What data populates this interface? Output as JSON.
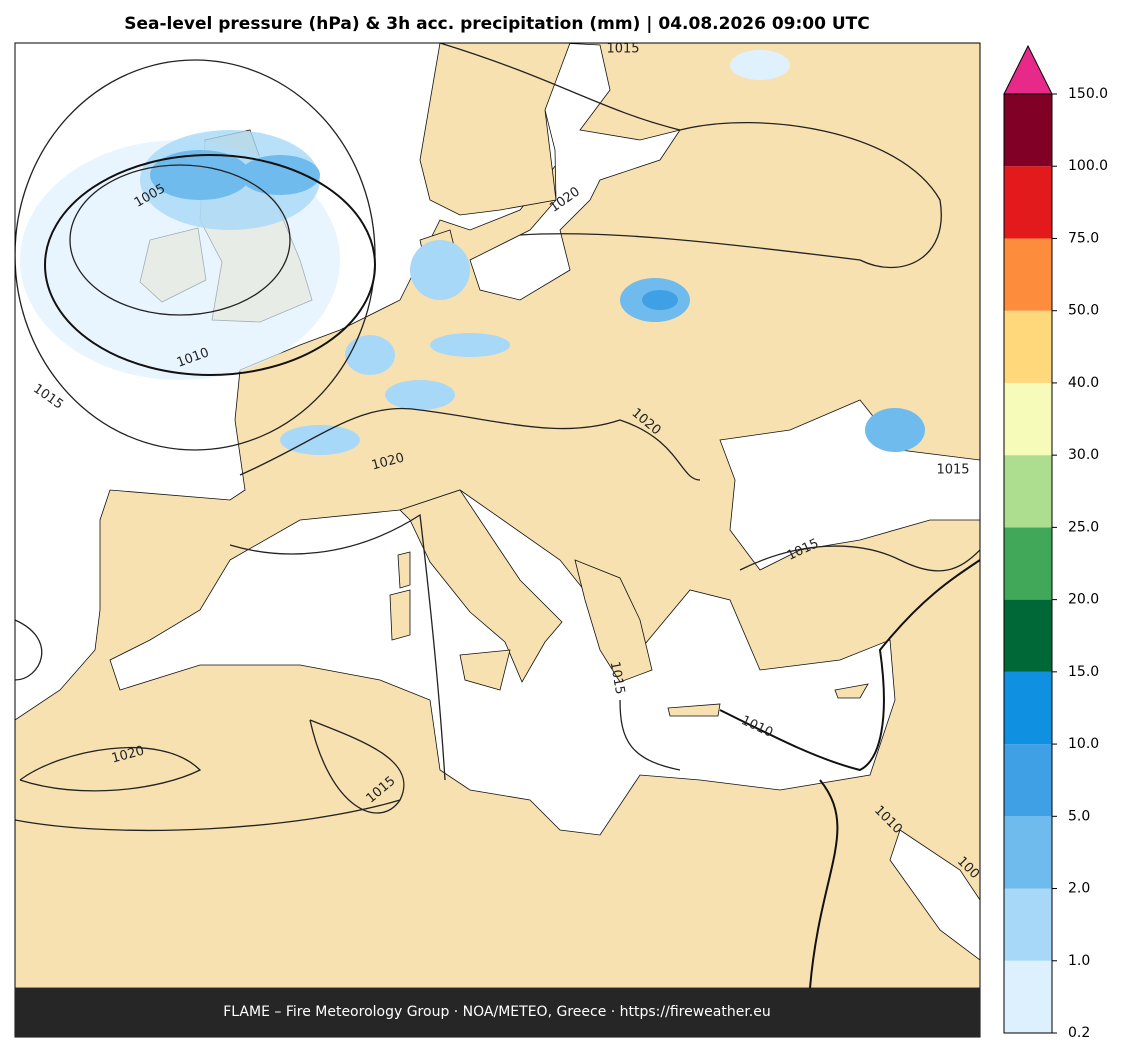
{
  "title": "Sea-level pressure (hPa) & 3h acc. precipitation (mm)  |  04.08.2026 09:00 UTC",
  "footer": "FLAME – Fire Meteorology Group · NOA/METEO, Greece · https://fireweather.eu",
  "isobar_labels": [
    "1015",
    "1020",
    "1005",
    "1010",
    "1015",
    "1020",
    "1020",
    "1015",
    "1015",
    "1015",
    "1010",
    "1020",
    "1015",
    "1010",
    "100"
  ],
  "colorbar": {
    "ticks": [
      0.2,
      {
        "value": 1,
        "label": "1.0"
      },
      {
        "value": 2,
        "label": "2.0"
      },
      {
        "value": 5,
        "label": "5.0"
      },
      {
        "value": 10,
        "label": "10.0"
      },
      {
        "value": 15,
        "label": "15.0"
      },
      {
        "value": 20,
        "label": "20.0"
      },
      {
        "value": 25,
        "label": "25.0"
      },
      {
        "value": 30,
        "label": "30.0"
      },
      {
        "value": 40,
        "label": "40.0"
      },
      {
        "value": 50,
        "label": "50.0"
      },
      {
        "value": 75,
        "label": "75.0"
      },
      {
        "value": 100,
        "label": "100.0"
      },
      {
        "value": 150,
        "label": "150.0"
      }
    ],
    "colors": [
      "#ddf0fd",
      "#a8d8f7",
      "#6fbbed",
      "#3fa0e6",
      "#1090e0",
      "#006837",
      "#41a85a",
      "#addd8e",
      "#f7fbb9",
      "#fed87a",
      "#fd8d3c",
      "#e31a1c",
      "#800026"
    ],
    "extend_color": "#e7298a"
  }
}
